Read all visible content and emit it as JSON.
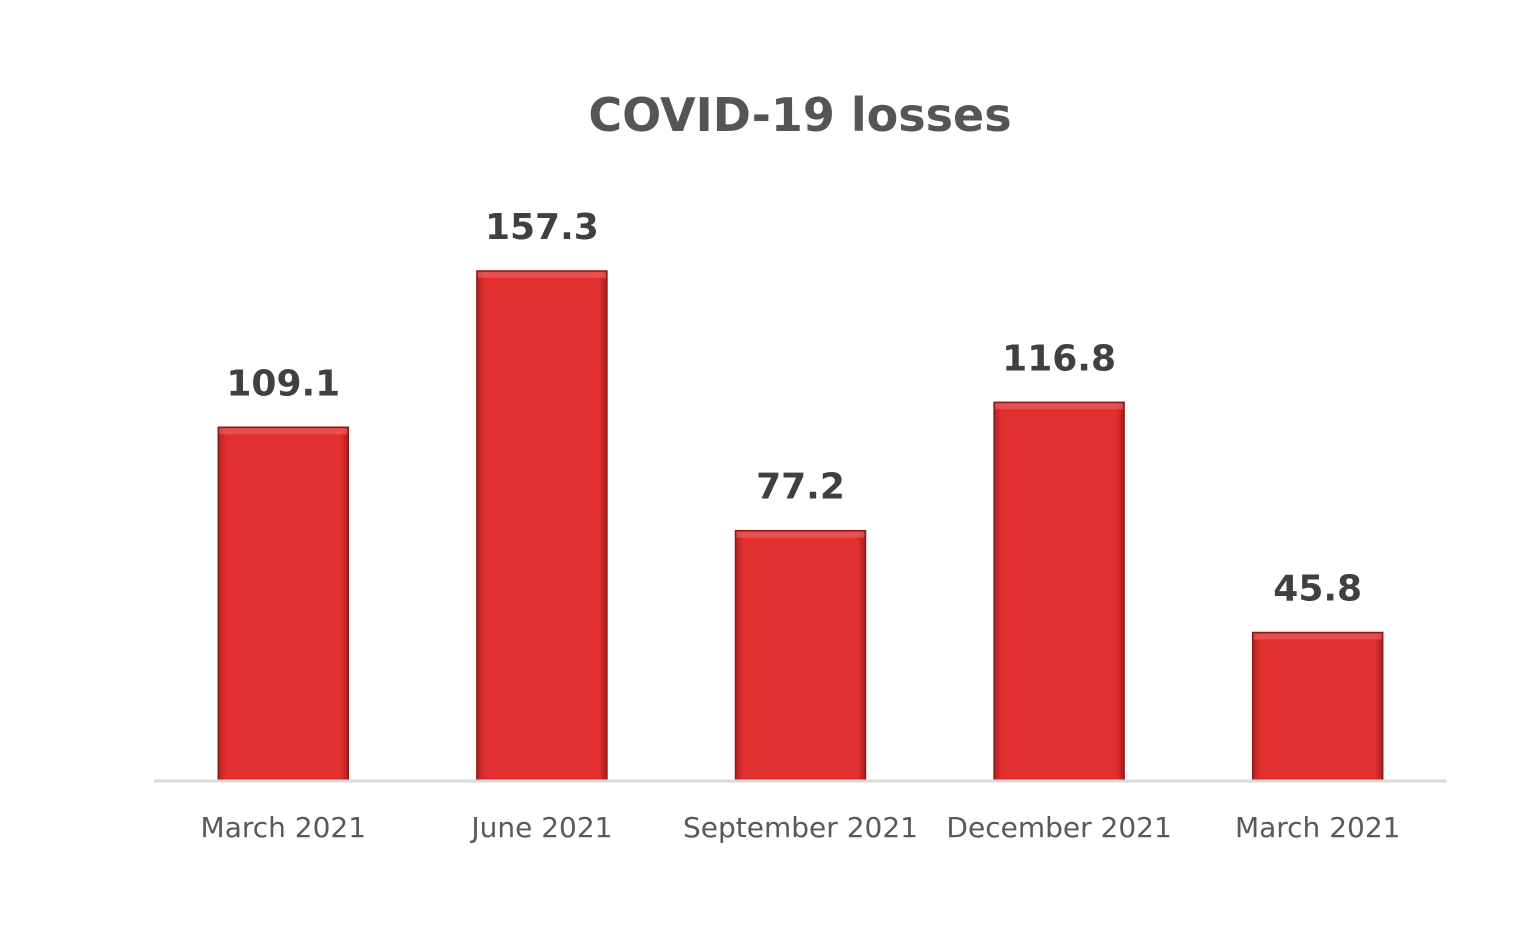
{
  "chart_data": {
    "type": "bar",
    "title": "COVID-19 losses",
    "xlabel": "",
    "ylabel": "",
    "categories": [
      "March 2021",
      "June 2021",
      "September 2021",
      "December 2021",
      "March 2021"
    ],
    "values": [
      109.1,
      157.3,
      77.2,
      116.8,
      45.8
    ],
    "value_labels": [
      "109.1",
      "157.3",
      "77.2",
      "116.8",
      "45.8"
    ],
    "ylim": [
      0,
      157.3
    ],
    "grid": false,
    "legend": "none",
    "colors": {
      "bar": "#e03030",
      "bar_edge": "#8a1a1a",
      "axis": "#d9d9d9",
      "title": "#555555",
      "data_label": "#404040",
      "tick_label": "#595959"
    }
  }
}
